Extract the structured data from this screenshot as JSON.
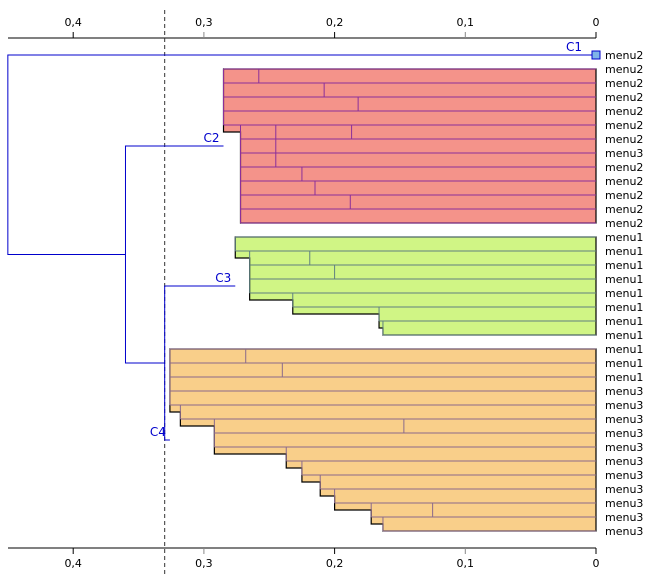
{
  "chart_data": {
    "type": "dendrogram",
    "title": "",
    "xlabel": "",
    "ylabel": "",
    "x_axis": {
      "reversed": true,
      "range": [
        0.45,
        0
      ],
      "ticks": [
        0.4,
        0.3,
        0.2,
        0.1,
        0
      ],
      "tick_labels": [
        "0,4",
        "0,3",
        "0,2",
        "0,1",
        "0"
      ],
      "position": "top-and-bottom"
    },
    "cut_height": 0.33,
    "root_height": 0.45,
    "top_split_height": 0.36,
    "c3_c4_join_height": 0.33,
    "clusters": [
      {
        "name": "C1",
        "color": "#7fb4e8",
        "line_color": "#0000cc",
        "leaves": [
          "menu2"
        ],
        "height": 0
      },
      {
        "name": "C2",
        "color": "#f4938a",
        "line_color": "#8b2f9a",
        "height": 0.285,
        "leaves": [
          "menu2",
          "menu2",
          "menu2",
          "menu2",
          "menu2",
          "menu2",
          "menu3",
          "menu2",
          "menu2",
          "menu2",
          "menu2",
          "menu2"
        ],
        "merges": [
          [
            0.182,
            2,
            3
          ],
          [
            0.208,
            1,
            2
          ],
          [
            0.258,
            0,
            1
          ],
          [
            0.187,
            4,
            5
          ],
          [
            0.188,
            9,
            10
          ],
          [
            0.215,
            8,
            9
          ],
          [
            0.225,
            7,
            8
          ],
          [
            0.245,
            4,
            7
          ],
          [
            0.252,
            11,
            11
          ],
          [
            0.272,
            4,
            11
          ],
          [
            0.285,
            0,
            4
          ]
        ]
      },
      {
        "name": "C3",
        "color": "#d0f585",
        "line_color": "#5f8080",
        "height": 0.276,
        "leaves": [
          "menu1",
          "menu1",
          "menu1",
          "menu1",
          "menu1",
          "menu1",
          "menu1",
          "menu1"
        ],
        "merges": [
          [
            0.2,
            2,
            3
          ],
          [
            0.219,
            1,
            2
          ],
          [
            0.163,
            6,
            7
          ],
          [
            0.166,
            5,
            6
          ],
          [
            0.232,
            4,
            5
          ],
          [
            0.265,
            1,
            4
          ],
          [
            0.276,
            0,
            1
          ]
        ]
      },
      {
        "name": "C4",
        "color": "#f9cf8a",
        "line_color": "#8a6a8a",
        "height": 0.326,
        "leaves": [
          "menu1",
          "menu1",
          "menu1",
          "menu3",
          "menu3",
          "menu3",
          "menu3",
          "menu3",
          "menu3",
          "menu3",
          "menu3",
          "menu3",
          "menu3",
          "menu3"
        ],
        "merges": [
          [
            0.24,
            1,
            2
          ],
          [
            0.268,
            0,
            1
          ],
          [
            0.147,
            5,
            6
          ],
          [
            0.125,
            11,
            12
          ],
          [
            0.163,
            12,
            13
          ],
          [
            0.172,
            11,
            12
          ],
          [
            0.2,
            10,
            11
          ],
          [
            0.211,
            9,
            10
          ],
          [
            0.225,
            8,
            9
          ],
          [
            0.237,
            7,
            8
          ],
          [
            0.292,
            5,
            7
          ],
          [
            0.318,
            4,
            5
          ],
          [
            0.326,
            3,
            4
          ],
          [
            0.326,
            0,
            3
          ]
        ]
      }
    ]
  }
}
